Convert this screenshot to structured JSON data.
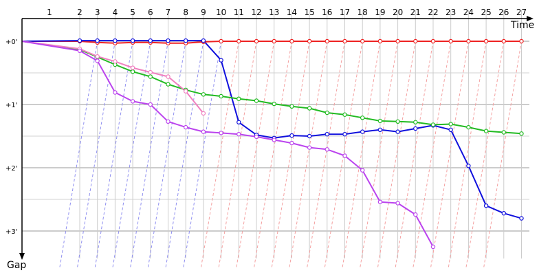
{
  "chart_data": {
    "type": "line",
    "title": "",
    "xlabel": "Time",
    "ylabel": "Gap",
    "laps": [
      "1",
      "2",
      "3",
      "4",
      "5",
      "6",
      "7",
      "8",
      "9",
      "10",
      "11",
      "12",
      "13",
      "14",
      "15",
      "16",
      "17",
      "18",
      "19",
      "20",
      "21",
      "22",
      "23",
      "24",
      "25",
      "26",
      "27"
    ],
    "y_ticks": [
      "+0'",
      "+1'",
      "+2'",
      "+3'"
    ],
    "ylim": [
      0,
      3.4
    ],
    "grid": true,
    "guide_colors": {
      "blue": "#9090f0",
      "red": "#f4a0a0"
    },
    "series": [
      {
        "color": "#ee2222",
        "marker_fill": "#ffffff",
        "values": [
          0.0,
          0.0,
          0.02,
          0.03,
          0.02,
          0.02,
          0.03,
          0.03,
          0.01,
          0,
          0,
          0,
          0,
          0,
          0,
          0,
          0,
          0,
          0,
          0,
          0,
          0,
          0,
          0,
          0,
          0,
          0
        ]
      },
      {
        "color": "#1010dd",
        "marker_fill": "#ffffff",
        "values": [
          0.0,
          -0.01,
          -0.01,
          -0.01,
          -0.01,
          -0.01,
          -0.01,
          -0.01,
          -0.01,
          0.3,
          1.28,
          1.48,
          1.53,
          1.49,
          1.5,
          1.47,
          1.47,
          1.43,
          1.4,
          1.43,
          1.38,
          1.33,
          1.4,
          1.97,
          2.6,
          2.72,
          2.8
        ]
      },
      {
        "color": "#22bb22",
        "marker_fill": "#ffffff",
        "values": [
          0.0,
          0.13,
          0.25,
          0.37,
          0.48,
          0.56,
          0.68,
          0.77,
          0.84,
          0.87,
          0.91,
          0.94,
          0.99,
          1.03,
          1.06,
          1.13,
          1.16,
          1.21,
          1.26,
          1.27,
          1.28,
          1.32,
          1.31,
          1.36,
          1.42,
          1.44,
          1.46
        ]
      },
      {
        "color": "#f080c0",
        "marker_fill": "#ffffff",
        "values": [
          0.0,
          0.12,
          0.24,
          0.32,
          0.42,
          0.49,
          0.56,
          0.79,
          1.14
        ]
      },
      {
        "color": "#bb44ee",
        "marker_fill": "#ffffff",
        "values": [
          0.0,
          0.15,
          0.31,
          0.81,
          0.95,
          1.0,
          1.27,
          1.36,
          1.43,
          1.45,
          1.47,
          1.51,
          1.56,
          1.61,
          1.68,
          1.71,
          1.81,
          2.04,
          2.54,
          2.56,
          2.74,
          3.25
        ]
      }
    ]
  }
}
